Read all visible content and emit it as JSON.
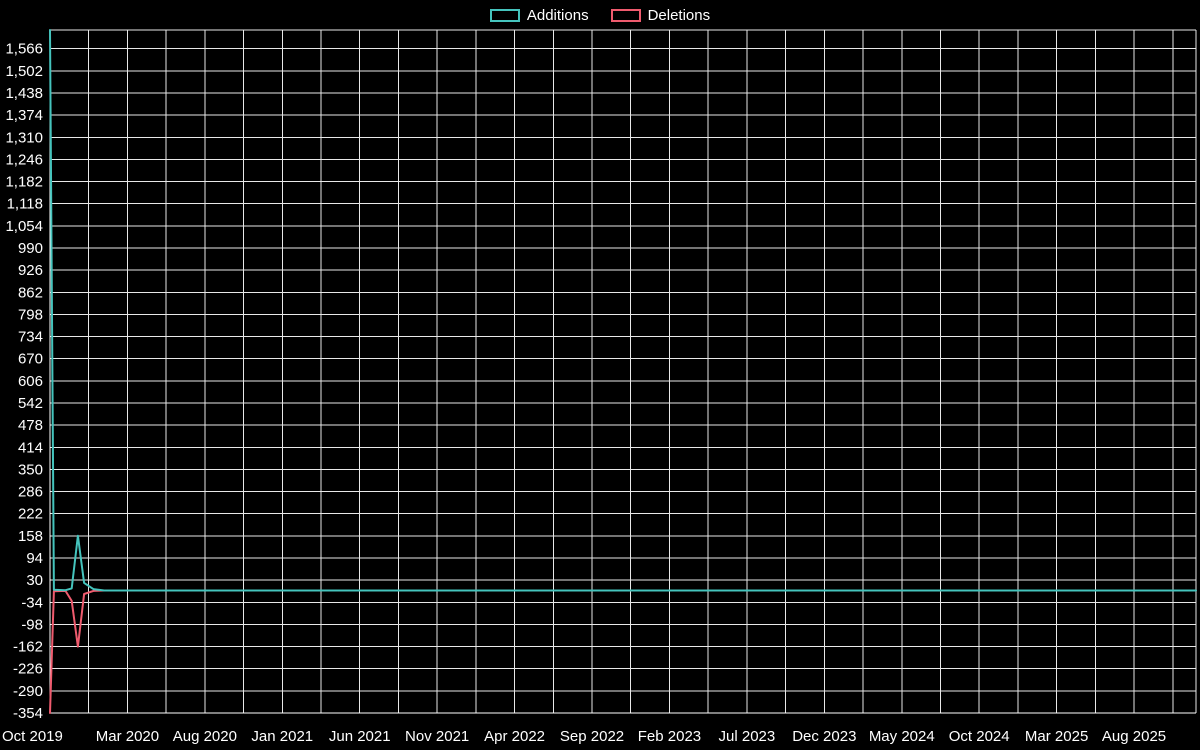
{
  "chart_data": {
    "type": "line",
    "title": "",
    "background": "#000000",
    "grid_color": "#e8e8e8",
    "axis_color": "#ffffff",
    "text_color": "#ffffff",
    "legend_position": "top-center",
    "grid": true,
    "x_unit": "months since Oct 2019",
    "xlim": [
      0,
      74
    ],
    "ylim": [
      -354,
      1620
    ],
    "x_grid_step": 2.5,
    "y_ticks": [
      1566,
      1502,
      1438,
      1374,
      1310,
      1246,
      1182,
      1118,
      1054,
      990,
      926,
      862,
      798,
      734,
      670,
      606,
      542,
      478,
      414,
      350,
      286,
      222,
      158,
      94,
      30,
      -34,
      -98,
      -162,
      -226,
      -290,
      -354
    ],
    "x_ticks": [
      {
        "m": 0,
        "label": "Oct 2019"
      },
      {
        "m": 5,
        "label": "Mar 2020"
      },
      {
        "m": 10,
        "label": "Aug 2020"
      },
      {
        "m": 15,
        "label": "Jan 2021"
      },
      {
        "m": 20,
        "label": "Jun 2021"
      },
      {
        "m": 25,
        "label": "Nov 2021"
      },
      {
        "m": 30,
        "label": "Apr 2022"
      },
      {
        "m": 35,
        "label": "Sep 2022"
      },
      {
        "m": 40,
        "label": "Feb 2023"
      },
      {
        "m": 45,
        "label": "Jul 2023"
      },
      {
        "m": 50,
        "label": "Dec 2023"
      },
      {
        "m": 55,
        "label": "May 2024"
      },
      {
        "m": 60,
        "label": "Oct 2024"
      },
      {
        "m": 65,
        "label": "Mar 2025"
      },
      {
        "m": 70,
        "label": "Aug 2025"
      }
    ],
    "series": [
      {
        "name": "Additions",
        "color": "#45c4bd",
        "points": [
          [
            0,
            1620
          ],
          [
            0.25,
            2
          ],
          [
            1.0,
            1
          ],
          [
            1.4,
            6
          ],
          [
            1.8,
            158
          ],
          [
            2.2,
            22
          ],
          [
            2.8,
            4
          ],
          [
            3.5,
            0
          ],
          [
            74,
            0
          ]
        ]
      },
      {
        "name": "Deletions",
        "color": "#ef5b6e",
        "points": [
          [
            0,
            -354
          ],
          [
            0.25,
            -2
          ],
          [
            1.0,
            -1
          ],
          [
            1.4,
            -30
          ],
          [
            1.8,
            -162
          ],
          [
            2.2,
            -10
          ],
          [
            2.8,
            -1
          ],
          [
            3.5,
            0
          ],
          [
            74,
            0
          ]
        ]
      }
    ]
  }
}
